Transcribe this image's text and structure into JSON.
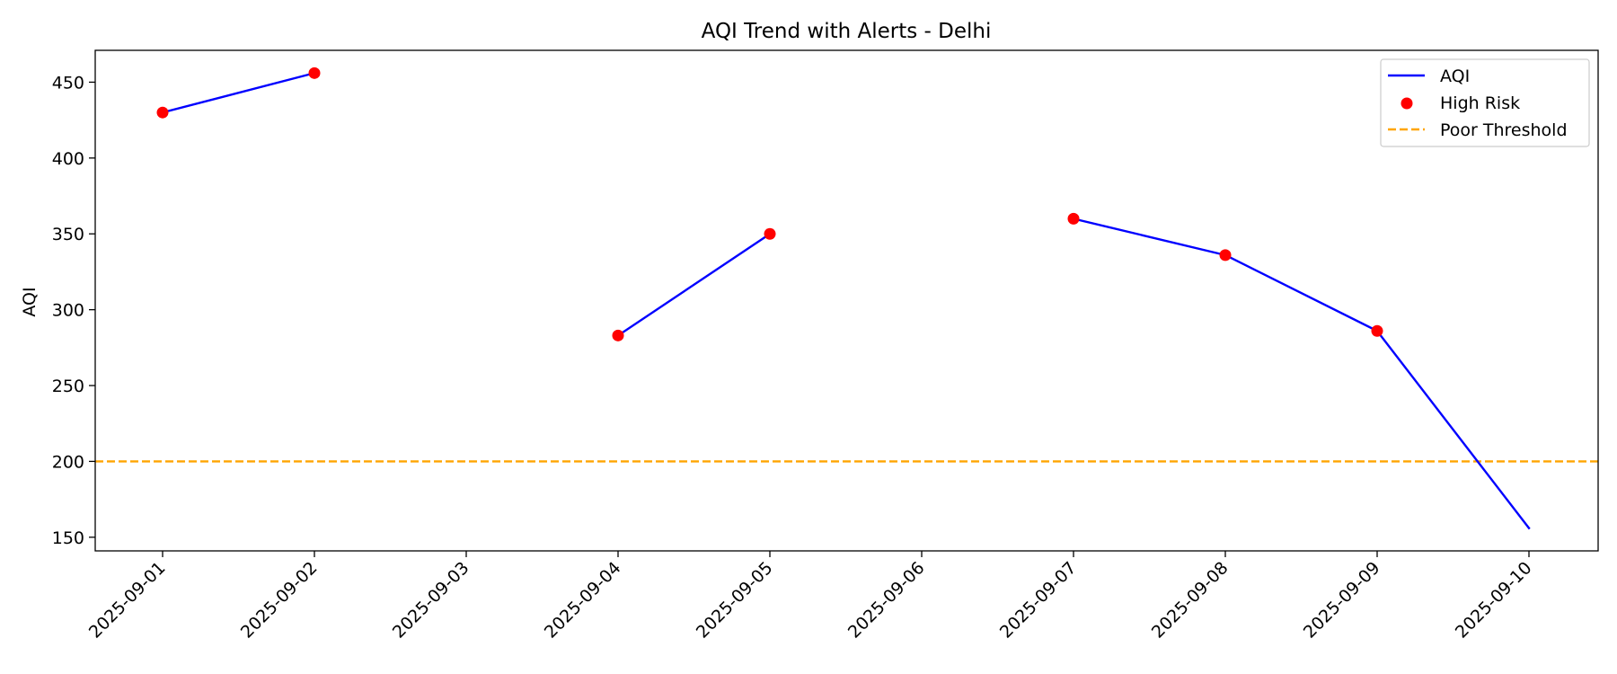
{
  "chart_data": {
    "type": "line",
    "title": "AQI Trend with Alerts - Delhi",
    "xlabel": "",
    "ylabel": "AQI",
    "x": [
      "2025-09-01",
      "2025-09-02",
      "2025-09-03",
      "2025-09-04",
      "2025-09-05",
      "2025-09-06",
      "2025-09-07",
      "2025-09-08",
      "2025-09-09",
      "2025-09-10"
    ],
    "ylim": [
      141,
      471
    ],
    "yticks": [
      150,
      200,
      250,
      300,
      350,
      400,
      450
    ],
    "grid": false,
    "legend_position": "top-right",
    "series": [
      {
        "name": "AQI",
        "kind": "line",
        "color": "#0000ff",
        "values": [
          430,
          456,
          null,
          283,
          350,
          null,
          360,
          336,
          286,
          156
        ]
      },
      {
        "name": "High Risk",
        "kind": "scatter",
        "color": "#ff0000",
        "points": [
          {
            "x": "2025-09-01",
            "y": 430
          },
          {
            "x": "2025-09-02",
            "y": 456
          },
          {
            "x": "2025-09-04",
            "y": 283
          },
          {
            "x": "2025-09-05",
            "y": 350
          },
          {
            "x": "2025-09-07",
            "y": 360
          },
          {
            "x": "2025-09-08",
            "y": 336
          },
          {
            "x": "2025-09-09",
            "y": 286
          }
        ]
      },
      {
        "name": "Poor Threshold",
        "kind": "hline",
        "color": "#ffa500",
        "y": 200
      }
    ]
  }
}
